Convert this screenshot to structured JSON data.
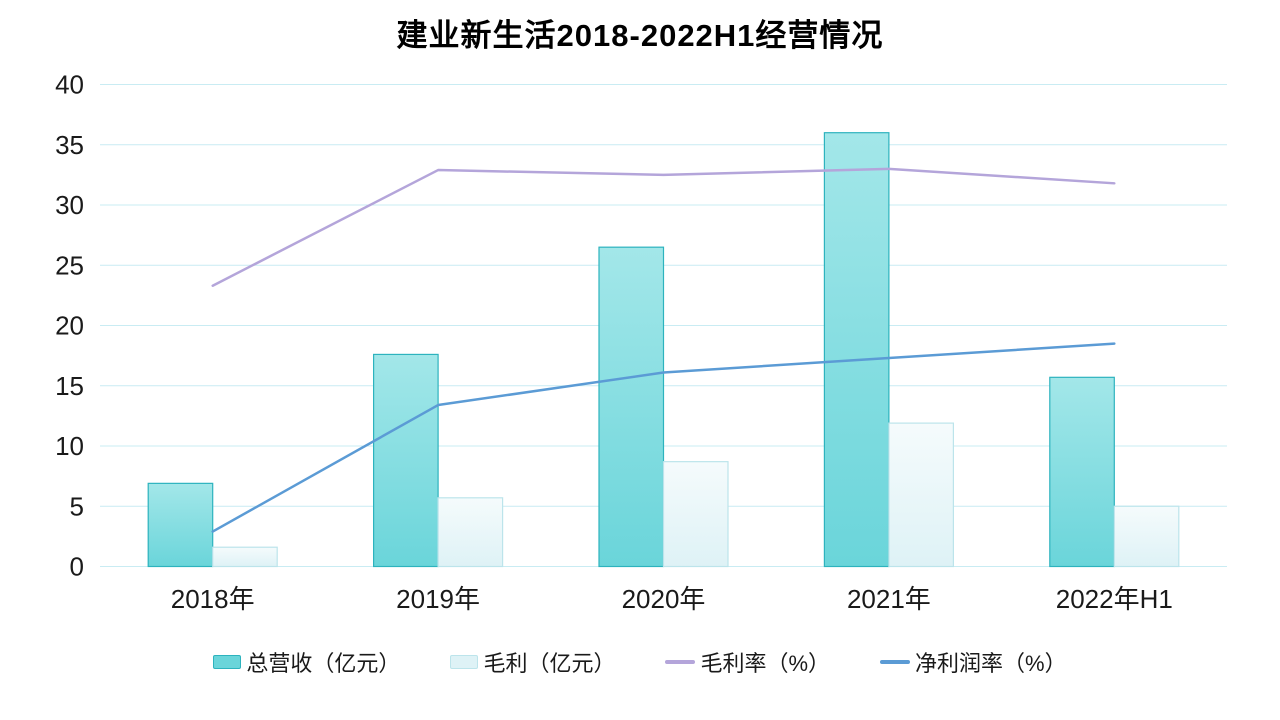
{
  "page": {
    "background": "#ffffff"
  },
  "chart_data": {
    "type": "combo-bar-line",
    "title": "建业新生活2018-2022H1经营情况",
    "categories": [
      "2018年",
      "2019年",
      "2020年",
      "2021年",
      "2022年H1"
    ],
    "series": [
      {
        "key": "revenue",
        "name": "总营收（亿元）",
        "type": "bar",
        "values": [
          6.9,
          17.6,
          26.5,
          36.0,
          15.7
        ],
        "fill_top": "#a3e7e9",
        "fill_bottom": "#6ad5da",
        "stroke": "#2db3be"
      },
      {
        "key": "gross-profit",
        "name": "毛利（亿元）",
        "type": "bar",
        "values": [
          1.6,
          5.7,
          8.7,
          11.9,
          5.0
        ],
        "fill_top": "#f5fbfc",
        "fill_bottom": "#def2f6",
        "stroke": "#bce4eb"
      },
      {
        "key": "gross-margin",
        "name": "毛利率（%）",
        "type": "line",
        "values": [
          23.3,
          32.9,
          32.5,
          33.0,
          31.8
        ],
        "color": "#b4a5da"
      },
      {
        "key": "net-margin",
        "name": "净利润率（%）",
        "type": "line",
        "values": [
          2.9,
          13.4,
          16.1,
          17.3,
          18.5
        ],
        "color": "#5b9bd5"
      }
    ],
    "y_axis": {
      "min": 0,
      "max": 40,
      "step": 5,
      "ticks": [
        "0",
        "5",
        "10",
        "15",
        "20",
        "25",
        "30",
        "35",
        "40"
      ]
    },
    "grid": true,
    "gridline_color": "#c9ecf3",
    "text_color": "#1a1a1a",
    "legend_position": "bottom"
  }
}
